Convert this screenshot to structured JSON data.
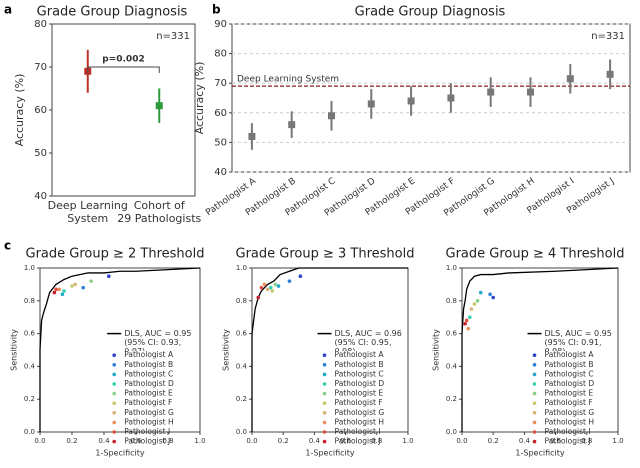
{
  "chart_data": [
    {
      "type": "errorbar",
      "panel_label": "a",
      "title": "Grade Group Diagnosis",
      "note": "n=331",
      "annotation": "p=0.002",
      "ylabel": "Accuracy (%)",
      "categories": [
        "Deep Learning\nSystem",
        "Cohort of\n29 Pathologists"
      ],
      "values": [
        69,
        61
      ],
      "errors": [
        5,
        4
      ],
      "colors": [
        "#c0302a",
        "#2e9a3a"
      ],
      "ylim": [
        40,
        80
      ],
      "yticks": [
        40,
        50,
        60,
        70,
        80
      ]
    },
    {
      "type": "errorbar",
      "panel_label": "b",
      "title": "Grade Group Diagnosis",
      "note": "n=331",
      "ylabel": "Accuracy (%)",
      "categories": [
        "Pathologist A",
        "Pathologist B",
        "Pathologist C",
        "Pathologist D",
        "Pathologist E",
        "Pathologist F",
        "Pathologist G",
        "Pathologist H",
        "Pathologist I",
        "Pathologist J"
      ],
      "values": [
        52,
        56,
        59,
        63,
        64,
        65,
        67,
        67,
        71.5,
        73
      ],
      "errors": [
        4.5,
        4.5,
        5,
        5,
        5,
        5,
        5,
        5,
        5,
        5
      ],
      "color": "#777777",
      "reference": {
        "label": "Deep Learning System",
        "value": 69,
        "color": "#8b1a1a"
      },
      "ylim": [
        40,
        90
      ],
      "yticks": [
        40,
        50,
        60,
        70,
        80,
        90
      ],
      "grid": true
    },
    {
      "type": "roc",
      "panel_label": "c",
      "title": "Grade Group ≥ 2 Threshold",
      "xlabel": "1-Specificity",
      "ylabel": "Sensitivity",
      "xlim": [
        0,
        1
      ],
      "ylim": [
        0,
        1
      ],
      "xticks": [
        {
          "value": 0,
          "label": "0.0"
        },
        0.2,
        0.4,
        0.6,
        0.8,
        {
          "value": 1,
          "label": "1.0"
        }
      ],
      "yticks": [
        {
          "value": 0,
          "label": "0.0"
        },
        0.2,
        0.4,
        0.6,
        0.8,
        {
          "value": 1,
          "label": "1.0"
        }
      ],
      "series": [
        {
          "name": "DLS, AUC = 0.95\n(95% CI: 0.93, 0.97)",
          "color": "#000000",
          "mode": "line",
          "x": [
            0,
            0,
            0.01,
            0.02,
            0.04,
            0.06,
            0.1,
            0.15,
            0.2,
            0.3,
            0.4,
            0.5,
            0.6,
            0.8,
            1
          ],
          "values": [
            0,
            0.5,
            0.68,
            0.72,
            0.78,
            0.85,
            0.9,
            0.93,
            0.95,
            0.97,
            0.97,
            0.98,
            0.98,
            0.99,
            1
          ]
        },
        {
          "name": "Pathologist A",
          "color": "#3344cc",
          "mode": "markers",
          "x": [
            0.43
          ],
          "values": [
            0.95
          ]
        },
        {
          "name": "Pathologist B",
          "color": "#2a7fd4",
          "mode": "markers",
          "x": [
            0.27
          ],
          "values": [
            0.88
          ]
        },
        {
          "name": "Pathologist C",
          "color": "#1fa8c8",
          "mode": "markers",
          "x": [
            0.14
          ],
          "values": [
            0.84
          ]
        },
        {
          "name": "Pathologist D",
          "color": "#33d1b0",
          "mode": "markers",
          "x": [
            0.15
          ],
          "values": [
            0.86
          ]
        },
        {
          "name": "Pathologist E",
          "color": "#88d18a",
          "mode": "markers",
          "x": [
            0.32
          ],
          "values": [
            0.92
          ]
        },
        {
          "name": "Pathologist F",
          "color": "#c9c96a",
          "mode": "markers",
          "x": [
            0.2
          ],
          "values": [
            0.89
          ]
        },
        {
          "name": "Pathologist G",
          "color": "#d9b27a",
          "mode": "markers",
          "x": [
            0.22
          ],
          "values": [
            0.9
          ]
        },
        {
          "name": "Pathologist H",
          "color": "#e8905a",
          "mode": "markers",
          "x": [
            0.12
          ],
          "values": [
            0.87
          ]
        },
        {
          "name": "Pathologist I",
          "color": "#e0503a",
          "mode": "markers",
          "x": [
            0.1
          ],
          "values": [
            0.87
          ]
        },
        {
          "name": "Pathologist J",
          "color": "#c8202a",
          "mode": "markers",
          "x": [
            0.09
          ],
          "values": [
            0.85
          ]
        }
      ]
    },
    {
      "type": "roc",
      "title": "Grade Group ≥ 3 Threshold",
      "xlabel": "1-Specificity",
      "ylabel": "Sensitivity",
      "xlim": [
        0,
        1
      ],
      "ylim": [
        0,
        1
      ],
      "xticks": [
        {
          "value": 0,
          "label": "0.0"
        },
        0.2,
        0.4,
        0.6,
        0.8,
        {
          "value": 1,
          "label": "1.0"
        }
      ],
      "yticks": [
        {
          "value": 0,
          "label": "0.0"
        },
        0.2,
        0.4,
        0.6,
        0.8,
        {
          "value": 1,
          "label": "1.0"
        }
      ],
      "series": [
        {
          "name": "DLS, AUC = 0.96\n(95% CI: 0.95, 0.98)",
          "color": "#000000",
          "mode": "line",
          "x": [
            0,
            0,
            0.02,
            0.04,
            0.06,
            0.08,
            0.1,
            0.14,
            0.18,
            0.24,
            0.3,
            0.6,
            1
          ],
          "values": [
            0,
            0.6,
            0.75,
            0.82,
            0.86,
            0.88,
            0.9,
            0.92,
            0.96,
            0.98,
            1,
            1,
            1
          ]
        },
        {
          "name": "Pathologist A",
          "color": "#3344cc",
          "mode": "markers",
          "x": [
            0.31
          ],
          "values": [
            0.95
          ]
        },
        {
          "name": "Pathologist B",
          "color": "#2a7fd4",
          "mode": "markers",
          "x": [
            0.24
          ],
          "values": [
            0.92
          ]
        },
        {
          "name": "Pathologist C",
          "color": "#1fa8c8",
          "mode": "markers",
          "x": [
            0.17
          ],
          "values": [
            0.89
          ]
        },
        {
          "name": "Pathologist D",
          "color": "#33d1b0",
          "mode": "markers",
          "x": [
            0.12
          ],
          "values": [
            0.88
          ]
        },
        {
          "name": "Pathologist E",
          "color": "#88d18a",
          "mode": "markers",
          "x": [
            0.15
          ],
          "values": [
            0.9
          ]
        },
        {
          "name": "Pathologist F",
          "color": "#c9c96a",
          "mode": "markers",
          "x": [
            0.13
          ],
          "values": [
            0.86
          ]
        },
        {
          "name": "Pathologist G",
          "color": "#d9b27a",
          "mode": "markers",
          "x": [
            0.1
          ],
          "values": [
            0.87
          ]
        },
        {
          "name": "Pathologist H",
          "color": "#e8905a",
          "mode": "markers",
          "x": [
            0.08
          ],
          "values": [
            0.9
          ]
        },
        {
          "name": "Pathologist I",
          "color": "#e0503a",
          "mode": "markers",
          "x": [
            0.06
          ],
          "values": [
            0.88
          ]
        },
        {
          "name": "Pathologist J",
          "color": "#c8202a",
          "mode": "markers",
          "x": [
            0.04
          ],
          "values": [
            0.82
          ]
        }
      ]
    },
    {
      "type": "roc",
      "title": "Grade Group ≥ 4 Threshold",
      "xlabel": "1-Specificity",
      "ylabel": "Sensitivity",
      "xlim": [
        0,
        1
      ],
      "ylim": [
        0,
        1
      ],
      "xticks": [
        {
          "value": 0,
          "label": "0.0"
        },
        0.2,
        0.4,
        0.6,
        0.8,
        {
          "value": 1,
          "label": "1.0"
        }
      ],
      "yticks": [
        {
          "value": 0,
          "label": "0.0"
        },
        0.2,
        0.4,
        0.6,
        0.8,
        {
          "value": 1,
          "label": "1.0"
        }
      ],
      "series": [
        {
          "name": "DLS, AUC = 0.95\n(95% CI: 0.91, 0.98)",
          "color": "#000000",
          "mode": "line",
          "x": [
            0,
            0,
            0.01,
            0.02,
            0.03,
            0.05,
            0.08,
            0.12,
            0.2,
            0.3,
            0.6,
            1
          ],
          "values": [
            0,
            0.6,
            0.75,
            0.8,
            0.87,
            0.92,
            0.95,
            0.96,
            0.96,
            0.97,
            0.98,
            1
          ]
        },
        {
          "name": "Pathologist A",
          "color": "#3344cc",
          "mode": "markers",
          "x": [
            0.2
          ],
          "values": [
            0.82
          ]
        },
        {
          "name": "Pathologist B",
          "color": "#2a7fd4",
          "mode": "markers",
          "x": [
            0.18
          ],
          "values": [
            0.84
          ]
        },
        {
          "name": "Pathologist C",
          "color": "#1fa8c8",
          "mode": "markers",
          "x": [
            0.12
          ],
          "values": [
            0.85
          ]
        },
        {
          "name": "Pathologist D",
          "color": "#33d1b0",
          "mode": "markers",
          "x": [
            0.05
          ],
          "values": [
            0.7
          ]
        },
        {
          "name": "Pathologist E",
          "color": "#88d18a",
          "mode": "markers",
          "x": [
            0.1
          ],
          "values": [
            0.8
          ]
        },
        {
          "name": "Pathologist F",
          "color": "#c9c96a",
          "mode": "markers",
          "x": [
            0.08
          ],
          "values": [
            0.78
          ]
        },
        {
          "name": "Pathologist G",
          "color": "#d9b27a",
          "mode": "markers",
          "x": [
            0.06
          ],
          "values": [
            0.75
          ]
        },
        {
          "name": "Pathologist H",
          "color": "#e8905a",
          "mode": "markers",
          "x": [
            0.04
          ],
          "values": [
            0.63
          ]
        },
        {
          "name": "Pathologist I",
          "color": "#e0503a",
          "mode": "markers",
          "x": [
            0.03
          ],
          "values": [
            0.68
          ]
        },
        {
          "name": "Pathologist J",
          "color": "#c8202a",
          "mode": "markers",
          "x": [
            0.02
          ],
          "values": [
            0.66
          ]
        }
      ]
    }
  ]
}
